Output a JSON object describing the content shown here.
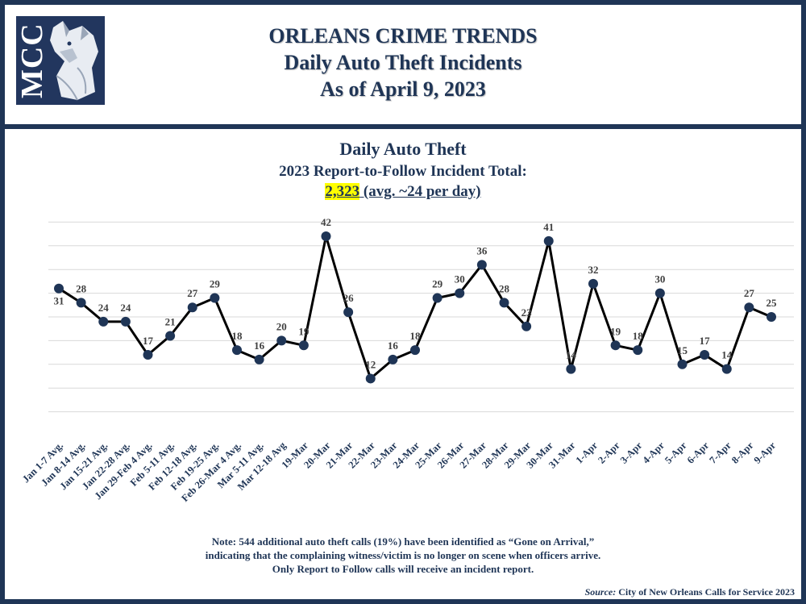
{
  "header": {
    "logo_text": "MCC",
    "title_line1": "ORLEANS CRIME TRENDS",
    "title_line2": "Daily Auto Theft Incidents",
    "title_line3": "As of April 9, 2023"
  },
  "chart_header": {
    "title": "Daily Auto Theft",
    "subtitle": "2023 Report-to-Follow Incident Total:",
    "total": "2,323",
    "avg": " (avg. ~24 per day)"
  },
  "chart_data": {
    "type": "line",
    "title": "Daily Auto Theft",
    "xlabel": "",
    "ylabel": "",
    "ylim": [
      0,
      50
    ],
    "grid": true,
    "categories": [
      "Jan 1-7 Avg.",
      "Jan 8-14 Avg.",
      "Jan 15-21 Avg.",
      "Jan 22-28 Avg.",
      "Jan 29-Feb 4 Avg.",
      "Feb 5-11 Avg.",
      "Feb 12-18 Avg.",
      "Feb 19-25 Avg.",
      "Feb 26-Mar 4 Avg.",
      "Mar 5-11 Avg.",
      "Mar 12-18 Avg",
      "19-Mar",
      "20-Mar",
      "21-Mar",
      "22-Mar",
      "23-Mar",
      "24-Mar",
      "25-Mar",
      "26-Mar",
      "27-Mar",
      "28-Mar",
      "29-Mar",
      "30-Mar",
      "31-Mar",
      "1-Apr",
      "2-Apr",
      "3-Apr",
      "4-Apr",
      "5-Apr",
      "6-Apr",
      "7-Apr",
      "8-Apr",
      "9-Apr"
    ],
    "values": [
      31,
      28,
      24,
      24,
      17,
      21,
      27,
      29,
      18,
      16,
      20,
      19,
      42,
      26,
      12,
      16,
      18,
      29,
      30,
      36,
      28,
      23,
      41,
      14,
      32,
      19,
      18,
      30,
      15,
      17,
      14,
      27,
      25
    ],
    "label_pos": [
      "below",
      "above",
      "above",
      "above",
      "above",
      "above",
      "above",
      "above",
      "above",
      "above",
      "above",
      "above",
      "above",
      "above",
      "above",
      "above",
      "above",
      "above",
      "above",
      "above",
      "above",
      "above",
      "above",
      "above",
      "above",
      "above",
      "above",
      "above",
      "above",
      "above",
      "above",
      "above",
      "above"
    ]
  },
  "colors": {
    "navy": "#1f3556",
    "line": "#000000",
    "marker": "#1f3556",
    "grid": "#d9d9d9",
    "label": "#404040",
    "highlight": "#ffff00"
  },
  "note": "Note: 544 additional auto theft calls (19%) have been identified as “Gone on Arrival,” indicating that the complaining witness/victim is no longer on scene when officers arrive.  Only Report to Follow calls will receive an incident report.",
  "source": {
    "label": "Source:",
    "text": " City of New Orleans Calls for Service 2023"
  }
}
